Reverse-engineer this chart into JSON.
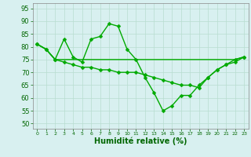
{
  "title": "",
  "xlabel": "Humidité relative (%)",
  "ylabel": "",
  "background_color": "#d8f0f0",
  "grid_color": "#b8ddd0",
  "line_color": "#00aa00",
  "x": [
    0,
    1,
    2,
    3,
    4,
    5,
    6,
    7,
    8,
    9,
    10,
    11,
    12,
    13,
    14,
    15,
    16,
    17,
    18,
    19,
    20,
    21,
    22,
    23
  ],
  "series": [
    [
      81,
      79,
      75,
      83,
      76,
      74,
      83,
      84,
      89,
      88,
      79,
      75,
      68,
      62,
      55,
      57,
      61,
      61,
      65,
      68,
      71,
      73,
      75,
      76
    ],
    [
      81,
      79,
      75,
      75,
      75,
      75,
      75,
      75,
      75,
      75,
      75,
      75,
      75,
      75,
      75,
      75,
      75,
      75,
      75,
      75,
      75,
      75,
      75,
      76
    ],
    [
      81,
      79,
      75,
      74,
      73,
      72,
      72,
      71,
      71,
      70,
      70,
      70,
      69,
      68,
      67,
      66,
      65,
      65,
      64,
      68,
      71,
      73,
      74,
      76
    ]
  ],
  "ylim": [
    48,
    97
  ],
  "yticks": [
    50,
    55,
    60,
    65,
    70,
    75,
    80,
    85,
    90,
    95
  ],
  "xlim": [
    -0.5,
    23.5
  ],
  "xticks": [
    0,
    1,
    2,
    3,
    4,
    5,
    6,
    7,
    8,
    9,
    10,
    11,
    12,
    13,
    14,
    15,
    16,
    17,
    18,
    19,
    20,
    21,
    22,
    23
  ],
  "marker": "D",
  "markersize": 2.5,
  "linewidth": 1.0,
  "xlabel_fontsize": 7,
  "tick_fontsize": 6,
  "xtick_fontsize": 4.5
}
